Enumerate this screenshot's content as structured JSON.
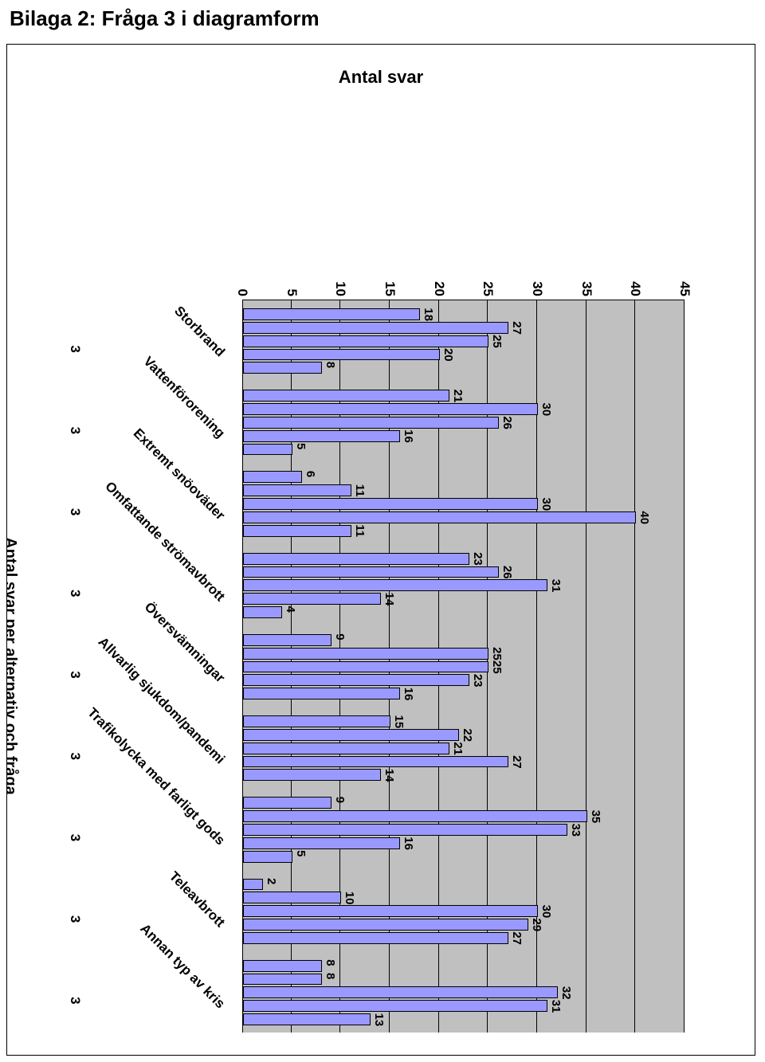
{
  "page_title": "Bilaga 2: Fråga 3 i diagramform",
  "chart": {
    "type": "bar",
    "title": "Antal svar",
    "x_axis_label": "Antal svar per alternativ och fråga",
    "ymin": 0,
    "ymax": 45,
    "ytick_step": 5,
    "background_color": "#c0c0c0",
    "grid_color": "#000000",
    "bar_color": "#9999ff",
    "bar_border_color": "#000000",
    "text_color": "#000000",
    "title_fontsize": 22,
    "tick_fontsize": 17,
    "label_fontsize": 17,
    "value_fontsize": 15,
    "categories": [
      {
        "label": "Storbrand",
        "sub": "3",
        "values": [
          18,
          27,
          25,
          20,
          8
        ]
      },
      {
        "label": "Vattenförorening",
        "sub": "3",
        "values": [
          21,
          30,
          26,
          16,
          5
        ]
      },
      {
        "label": "Extremt snöoväder",
        "sub": "3",
        "values": [
          6,
          11,
          30,
          40,
          11
        ]
      },
      {
        "label": "Omfattande strömavbrott",
        "sub": "3",
        "values": [
          23,
          26,
          31,
          14,
          4
        ]
      },
      {
        "label": "Översvämningar",
        "sub": "3",
        "values": [
          9,
          25,
          25,
          23,
          16
        ]
      },
      {
        "label": "Allvarlig sjukdom/pandemi",
        "sub": "3",
        "values": [
          15,
          22,
          21,
          27,
          14
        ]
      },
      {
        "label": "Trafikolycka med farligt gods",
        "sub": "3",
        "values": [
          9,
          35,
          33,
          16,
          5
        ]
      },
      {
        "label": "Teleavbrott",
        "sub": "3",
        "values": [
          2,
          10,
          30,
          29,
          27
        ]
      },
      {
        "label": "Annan typ av kris",
        "sub": "3",
        "values": [
          8,
          8,
          32,
          31,
          13
        ]
      }
    ]
  }
}
